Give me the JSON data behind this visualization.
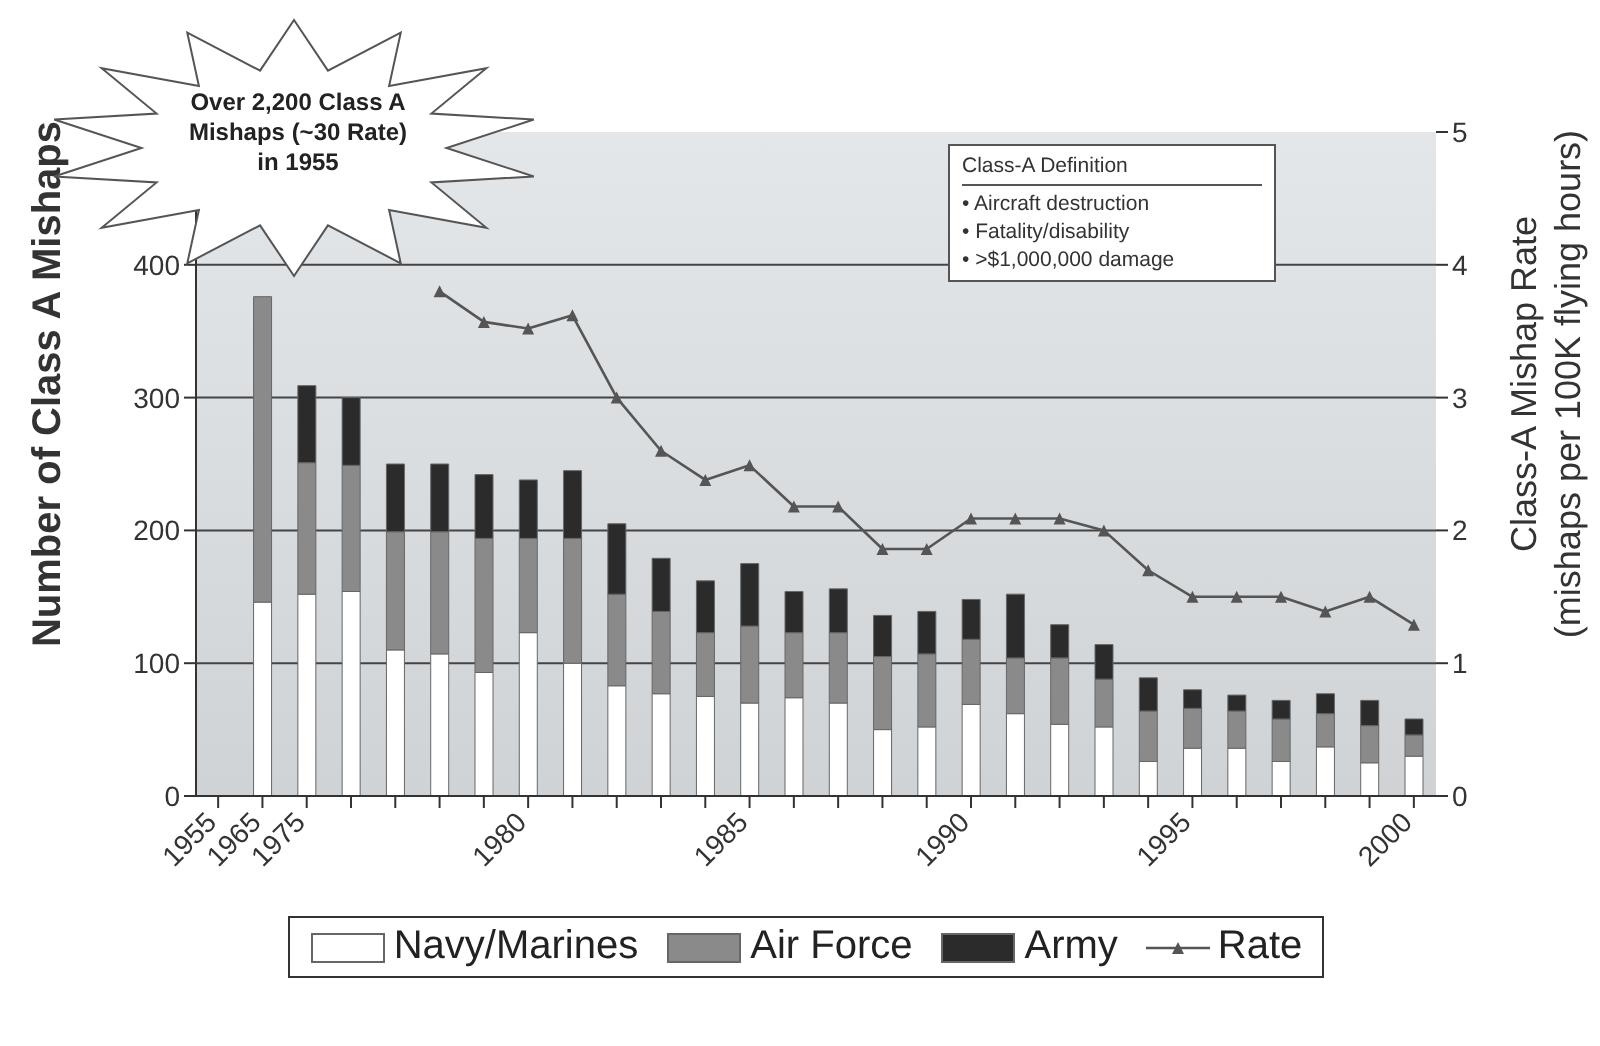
{
  "chart_data": {
    "type": "bar",
    "stacked": true,
    "ylabel": "Number of Class A Mishaps",
    "y2label": "Class-A Mishap Rate\n(mishaps per 100K flying hours)",
    "categories": [
      "1955",
      "1965",
      "1975",
      null,
      null,
      null,
      null,
      "1980",
      null,
      null,
      null,
      null,
      "1985",
      null,
      null,
      null,
      null,
      "1990",
      null,
      null,
      null,
      null,
      "1995",
      null,
      null,
      null,
      null,
      "2000"
    ],
    "series": [
      {
        "name": "Navy/Marines",
        "color": "#ffffff",
        "values": [
          null,
          146,
          152,
          154,
          110,
          107,
          93,
          123,
          100,
          83,
          77,
          75,
          70,
          74,
          70,
          50,
          52,
          69,
          62,
          54,
          52,
          26,
          36,
          36,
          26,
          37,
          25,
          30
        ]
      },
      {
        "name": "Air Force",
        "color": "#8a8a8a",
        "values": [
          null,
          230,
          99,
          95,
          89,
          92,
          101,
          71,
          94,
          69,
          62,
          48,
          58,
          49,
          53,
          55,
          55,
          49,
          42,
          50,
          36,
          38,
          30,
          28,
          32,
          25,
          28,
          16
        ]
      },
      {
        "name": "Army",
        "color": "#2b2b2b",
        "values": [
          null,
          null,
          58,
          51,
          51,
          51,
          48,
          44,
          51,
          53,
          40,
          39,
          47,
          31,
          33,
          31,
          32,
          30,
          48,
          25,
          26,
          25,
          14,
          12,
          14,
          15,
          19,
          12
        ]
      },
      {
        "name": "Rate",
        "type": "line",
        "axis": "y2",
        "color": "#555555",
        "marker": "triangle",
        "values": [
          null,
          null,
          null,
          null,
          null,
          3.8,
          3.57,
          3.52,
          3.62,
          3.0,
          2.6,
          2.38,
          2.49,
          2.18,
          2.18,
          1.86,
          1.86,
          2.09,
          2.09,
          2.09,
          2.0,
          1.7,
          1.5,
          1.5,
          1.5,
          1.39,
          1.5,
          1.29
        ]
      }
    ],
    "ylim": [
      0,
      500
    ],
    "yticks": [
      0,
      100,
      200,
      300,
      400
    ],
    "y2lim": [
      0,
      5
    ],
    "y2ticks": [
      0,
      1,
      2,
      3,
      4,
      5
    ],
    "grid": "y",
    "legend": "bottom",
    "annotations": [
      "Over 2,200 Class A Mishaps (~30 Rate) in 1955",
      "Class-A Definition",
      "• Aircraft destruction",
      "• Fatality/disability",
      "• >$1,000,000 damage"
    ]
  }
}
